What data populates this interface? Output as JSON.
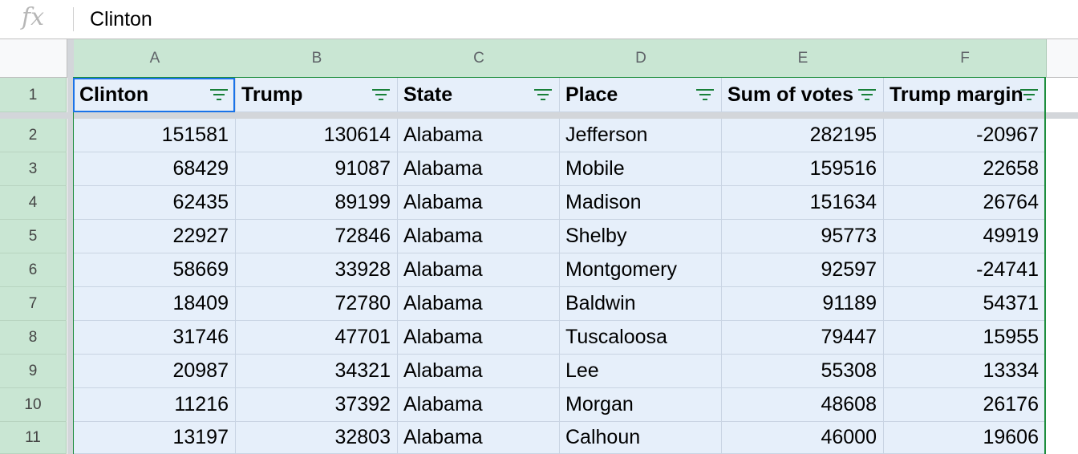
{
  "formula_bar": {
    "fx_label": "fx",
    "value": "Clinton"
  },
  "columns": [
    "A",
    "B",
    "C",
    "D",
    "E",
    "F"
  ],
  "headers": [
    "Clinton",
    "Trump",
    "State",
    "Place",
    "Sum of votes",
    "Trump margin"
  ],
  "row_numbers": [
    "1",
    "2",
    "3",
    "4",
    "5",
    "6",
    "7",
    "8",
    "9",
    "10",
    "11"
  ],
  "rows": [
    [
      "151581",
      "130614",
      "Alabama",
      "Jefferson",
      "282195",
      "-20967"
    ],
    [
      "68429",
      "91087",
      "Alabama",
      "Mobile",
      "159516",
      "22658"
    ],
    [
      "62435",
      "89199",
      "Alabama",
      "Madison",
      "151634",
      "26764"
    ],
    [
      "22927",
      "72846",
      "Alabama",
      "Shelby",
      "95773",
      "49919"
    ],
    [
      "58669",
      "33928",
      "Alabama",
      "Montgomery",
      "92597",
      "-24741"
    ],
    [
      "18409",
      "72780",
      "Alabama",
      "Baldwin",
      "91189",
      "54371"
    ],
    [
      "31746",
      "47701",
      "Alabama",
      "Tuscaloosa",
      "79447",
      "15955"
    ],
    [
      "20987",
      "34321",
      "Alabama",
      "Lee",
      "55308",
      "13334"
    ],
    [
      "11216",
      "37392",
      "Alabama",
      "Morgan",
      "48608",
      "26176"
    ],
    [
      "13197",
      "32803",
      "Alabama",
      "Calhoun",
      "46000",
      "19606"
    ]
  ],
  "colors": {
    "selection": "#e6effa",
    "header_selected": "#c9e6d3",
    "filter_icon": "#188038",
    "active_border": "#1a73e8"
  }
}
